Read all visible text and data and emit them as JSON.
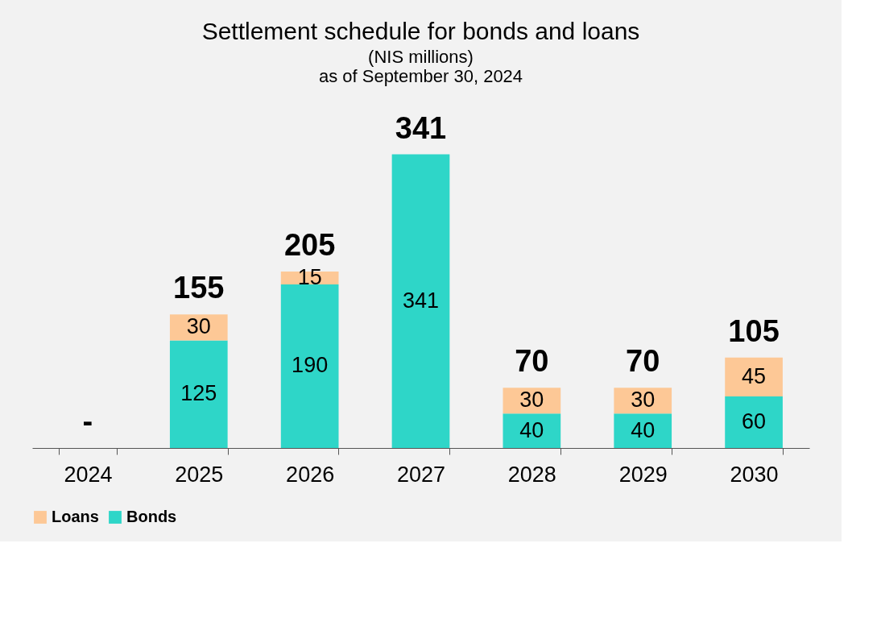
{
  "chart_data": {
    "type": "bar",
    "title": "Settlement schedule for bonds and loans",
    "subtitle": "(NIS millions)",
    "annotations": [
      "as of September 30, 2024"
    ],
    "categories": [
      "2024",
      "2025",
      "2026",
      "2027",
      "2028",
      "2029",
      "2030"
    ],
    "series": [
      {
        "name": "Bonds",
        "color": "#2ed6c8",
        "values": [
          null,
          125,
          190,
          341,
          40,
          40,
          60
        ]
      },
      {
        "name": "Loans",
        "color": "#fdc896",
        "values": [
          null,
          30,
          15,
          null,
          30,
          30,
          45
        ]
      }
    ],
    "stacked": true,
    "data_labels": true,
    "totals": [
      "-",
      "155",
      "205",
      "341",
      "70",
      "70",
      "105"
    ],
    "tick_labels": "x",
    "grid": false,
    "legend": "bottom"
  }
}
